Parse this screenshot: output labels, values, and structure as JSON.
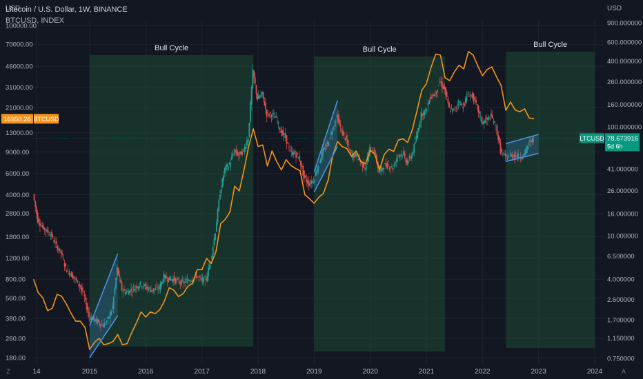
{
  "header": {
    "title": "Litecoin / U.S. Dollar, 1W, BINANCE",
    "overlay": "BTCUSD, INDEX"
  },
  "colors": {
    "background": "#131722",
    "grid": "#1f2430",
    "axis_text": "#b2b5be",
    "candle_up": "#26a69a",
    "candle_down": "#ef5350",
    "overlay_line": "#f7931a",
    "bull_zone": "#1e4a35",
    "channel": "#4a90e2",
    "ltc_badge": "#089981",
    "btc_badge": "#f7931a"
  },
  "chart_data": {
    "type": "line",
    "title": "Litecoin / U.S. Dollar, 1W, BINANCE",
    "overlay_label": "BTCUSD, INDEX",
    "left_axis": {
      "unit": "USD",
      "scale": "log",
      "ticks": [
        "100000.00",
        "70000.00",
        "46000.00",
        "31000.00",
        "21000.00",
        "13000.00",
        "9000.00",
        "6000.00",
        "4000.00",
        "2800.00",
        "1800.00",
        "1200.00",
        "800.00",
        "560.00",
        "380.00",
        "260.00",
        "180.00"
      ]
    },
    "right_axis": {
      "unit": "USD",
      "scale": "log",
      "ticks": [
        "900.000000",
        "600.000000",
        "400.000000",
        "260.000000",
        "160.000000",
        "100.000000",
        "41.000000",
        "26.000000",
        "16.000000",
        "10.000000",
        "6.500000",
        "4.000000",
        "2.600000",
        "1.700000",
        "1.150000",
        "0.750000"
      ]
    },
    "x_ticks": [
      "14",
      "2015",
      "2016",
      "2017",
      "2018",
      "2019",
      "2020",
      "2021",
      "2022",
      "2023",
      "2024"
    ],
    "grid": true,
    "series": [
      {
        "name": "BTCUSD",
        "axis": "left",
        "points": [
          [
            "2014-01",
            800
          ],
          [
            "2014-02",
            620
          ],
          [
            "2014-03",
            560
          ],
          [
            "2014-04",
            440
          ],
          [
            "2014-05",
            460
          ],
          [
            "2014-06",
            600
          ],
          [
            "2014-07",
            580
          ],
          [
            "2014-08",
            500
          ],
          [
            "2014-09",
            420
          ],
          [
            "2014-10",
            360
          ],
          [
            "2014-11",
            360
          ],
          [
            "2014-12",
            320
          ],
          [
            "2015-01",
            210
          ],
          [
            "2015-02",
            240
          ],
          [
            "2015-03",
            260
          ],
          [
            "2015-04",
            230
          ],
          [
            "2015-05",
            235
          ],
          [
            "2015-06",
            245
          ],
          [
            "2015-07",
            280
          ],
          [
            "2015-08",
            230
          ],
          [
            "2015-09",
            235
          ],
          [
            "2015-10",
            290
          ],
          [
            "2015-11",
            350
          ],
          [
            "2015-12",
            430
          ],
          [
            "2016-01",
            390
          ],
          [
            "2016-02",
            430
          ],
          [
            "2016-03",
            415
          ],
          [
            "2016-04",
            450
          ],
          [
            "2016-05",
            530
          ],
          [
            "2016-06",
            680
          ],
          [
            "2016-07",
            650
          ],
          [
            "2016-08",
            575
          ],
          [
            "2016-09",
            610
          ],
          [
            "2016-10",
            700
          ],
          [
            "2016-11",
            740
          ],
          [
            "2016-12",
            960
          ],
          [
            "2017-01",
            960
          ],
          [
            "2017-02",
            1190
          ],
          [
            "2017-03",
            1080
          ],
          [
            "2017-04",
            1350
          ],
          [
            "2017-05",
            2300
          ],
          [
            "2017-06",
            2500
          ],
          [
            "2017-07",
            2880
          ],
          [
            "2017-08",
            4700
          ],
          [
            "2017-09",
            4300
          ],
          [
            "2017-10",
            6400
          ],
          [
            "2017-11",
            10000
          ],
          [
            "2017-12",
            14000
          ],
          [
            "2018-01",
            10000
          ],
          [
            "2018-02",
            10300
          ],
          [
            "2018-03",
            6900
          ],
          [
            "2018-04",
            9200
          ],
          [
            "2018-05",
            7500
          ],
          [
            "2018-06",
            6400
          ],
          [
            "2018-07",
            7800
          ],
          [
            "2018-08",
            7000
          ],
          [
            "2018-09",
            6600
          ],
          [
            "2018-10",
            6300
          ],
          [
            "2018-11",
            4000
          ],
          [
            "2018-12",
            3700
          ],
          [
            "2019-01",
            3400
          ],
          [
            "2019-02",
            3800
          ],
          [
            "2019-03",
            4100
          ],
          [
            "2019-04",
            5300
          ],
          [
            "2019-05",
            8500
          ],
          [
            "2019-06",
            11000
          ],
          [
            "2019-07",
            10000
          ],
          [
            "2019-08",
            9600
          ],
          [
            "2019-09",
            8300
          ],
          [
            "2019-10",
            9200
          ],
          [
            "2019-11",
            7500
          ],
          [
            "2019-12",
            7200
          ],
          [
            "2020-01",
            9300
          ],
          [
            "2020-02",
            8600
          ],
          [
            "2020-03",
            6400
          ],
          [
            "2020-04",
            8600
          ],
          [
            "2020-05",
            9500
          ],
          [
            "2020-06",
            9100
          ],
          [
            "2020-07",
            11300
          ],
          [
            "2020-08",
            11600
          ],
          [
            "2020-09",
            10800
          ],
          [
            "2020-10",
            13800
          ],
          [
            "2020-11",
            19700
          ],
          [
            "2020-12",
            29000
          ],
          [
            "2021-01",
            33000
          ],
          [
            "2021-02",
            45000
          ],
          [
            "2021-03",
            58000
          ],
          [
            "2021-04",
            57000
          ],
          [
            "2021-05",
            37000
          ],
          [
            "2021-06",
            35000
          ],
          [
            "2021-07",
            41500
          ],
          [
            "2021-08",
            47000
          ],
          [
            "2021-09",
            43800
          ],
          [
            "2021-10",
            61000
          ],
          [
            "2021-11",
            57000
          ],
          [
            "2021-12",
            46300
          ],
          [
            "2022-01",
            38500
          ],
          [
            "2022-02",
            43200
          ],
          [
            "2022-03",
            45500
          ],
          [
            "2022-04",
            37700
          ],
          [
            "2022-05",
            31800
          ],
          [
            "2022-06",
            19900
          ],
          [
            "2022-07",
            23300
          ],
          [
            "2022-08",
            20000
          ],
          [
            "2022-09",
            19400
          ],
          [
            "2022-10",
            20500
          ],
          [
            "2022-11",
            17200
          ],
          [
            "2022-12",
            16950
          ]
        ]
      },
      {
        "name": "LTCUSD",
        "axis": "right",
        "candles": "weekly",
        "points": [
          [
            "2014-01",
            24
          ],
          [
            "2014-02",
            14
          ],
          [
            "2014-03",
            12
          ],
          [
            "2014-04",
            11
          ],
          [
            "2014-05",
            10
          ],
          [
            "2014-06",
            8
          ],
          [
            "2014-07",
            7
          ],
          [
            "2014-08",
            5
          ],
          [
            "2014-09",
            4.5
          ],
          [
            "2014-10",
            4
          ],
          [
            "2014-11",
            3.5
          ],
          [
            "2014-12",
            2.7
          ],
          [
            "2015-01",
            1.8
          ],
          [
            "2015-02",
            1.7
          ],
          [
            "2015-03",
            1.6
          ],
          [
            "2015-04",
            1.5
          ],
          [
            "2015-05",
            1.7
          ],
          [
            "2015-06",
            2.2
          ],
          [
            "2015-07",
            5
          ],
          [
            "2015-08",
            3.2
          ],
          [
            "2015-09",
            3
          ],
          [
            "2015-10",
            3.2
          ],
          [
            "2015-11",
            3.4
          ],
          [
            "2015-12",
            3.6
          ],
          [
            "2016-01",
            3.4
          ],
          [
            "2016-02",
            3.2
          ],
          [
            "2016-03",
            3.2
          ],
          [
            "2016-04",
            3.3
          ],
          [
            "2016-05",
            4.2
          ],
          [
            "2016-06",
            4
          ],
          [
            "2016-07",
            4
          ],
          [
            "2016-08",
            3.8
          ],
          [
            "2016-09",
            3.7
          ],
          [
            "2016-10",
            3.9
          ],
          [
            "2016-11",
            4
          ],
          [
            "2016-12",
            4.3
          ],
          [
            "2017-01",
            3.9
          ],
          [
            "2017-02",
            4
          ],
          [
            "2017-03",
            6
          ],
          [
            "2017-04",
            11
          ],
          [
            "2017-05",
            25
          ],
          [
            "2017-06",
            41
          ],
          [
            "2017-07",
            45
          ],
          [
            "2017-08",
            60
          ],
          [
            "2017-09",
            55
          ],
          [
            "2017-10",
            60
          ],
          [
            "2017-11",
            80
          ],
          [
            "2017-12",
            320
          ],
          [
            "2018-01",
            180
          ],
          [
            "2018-02",
            200
          ],
          [
            "2018-03",
            130
          ],
          [
            "2018-04",
            130
          ],
          [
            "2018-05",
            120
          ],
          [
            "2018-06",
            90
          ],
          [
            "2018-07",
            80
          ],
          [
            "2018-08",
            58
          ],
          [
            "2018-09",
            57
          ],
          [
            "2018-10",
            50
          ],
          [
            "2018-11",
            34
          ],
          [
            "2018-12",
            30
          ],
          [
            "2019-01",
            32
          ],
          [
            "2019-02",
            45
          ],
          [
            "2019-03",
            60
          ],
          [
            "2019-04",
            70
          ],
          [
            "2019-05",
            95
          ],
          [
            "2019-06",
            125
          ],
          [
            "2019-07",
            90
          ],
          [
            "2019-08",
            75
          ],
          [
            "2019-09",
            55
          ],
          [
            "2019-10",
            55
          ],
          [
            "2019-11",
            48
          ],
          [
            "2019-12",
            42
          ],
          [
            "2020-01",
            62
          ],
          [
            "2020-02",
            60
          ],
          [
            "2020-03",
            38
          ],
          [
            "2020-04",
            44
          ],
          [
            "2020-05",
            44
          ],
          [
            "2020-06",
            42
          ],
          [
            "2020-07",
            55
          ],
          [
            "2020-08",
            57
          ],
          [
            "2020-09",
            47
          ],
          [
            "2020-10",
            55
          ],
          [
            "2020-11",
            80
          ],
          [
            "2020-12",
            130
          ],
          [
            "2021-01",
            140
          ],
          [
            "2021-02",
            190
          ],
          [
            "2021-03",
            200
          ],
          [
            "2021-04",
            260
          ],
          [
            "2021-05",
            220
          ],
          [
            "2021-06",
            145
          ],
          [
            "2021-07",
            140
          ],
          [
            "2021-08",
            170
          ],
          [
            "2021-09",
            155
          ],
          [
            "2021-10",
            200
          ],
          [
            "2021-11",
            190
          ],
          [
            "2021-12",
            150
          ],
          [
            "2022-01",
            110
          ],
          [
            "2022-02",
            115
          ],
          [
            "2022-03",
            125
          ],
          [
            "2022-04",
            100
          ],
          [
            "2022-05",
            60
          ],
          [
            "2022-06",
            52
          ],
          [
            "2022-07",
            55
          ],
          [
            "2022-08",
            55
          ],
          [
            "2022-09",
            53
          ],
          [
            "2022-10",
            55
          ],
          [
            "2022-11",
            70
          ],
          [
            "2022-12",
            78.673916
          ]
        ]
      }
    ],
    "bull_cycles": [
      {
        "label": "Bull Cycle",
        "start": "2015-01",
        "end": "2017-12"
      },
      {
        "label": "Bull Cycle",
        "start": "2019-01",
        "end": "2021-05"
      },
      {
        "label": "Bull Cycle",
        "start": "2022-06",
        "end": "2024-01"
      }
    ],
    "channels": [
      {
        "start": "2015-01",
        "end": "2015-07",
        "axis": "left",
        "lower": [
          180,
          400
        ],
        "upper": [
          330,
          1300
        ]
      },
      {
        "start": "2019-01",
        "end": "2019-06",
        "axis": "left",
        "lower": [
          4200,
          10000
        ],
        "upper": [
          6200,
          24000
        ]
      },
      {
        "start": "2022-06",
        "end": "2023-01",
        "axis": "right",
        "lower": [
          48,
          57
        ],
        "upper": [
          70,
          85
        ]
      }
    ],
    "price_labels": [
      {
        "series": "BTCUSD",
        "value": "16950.26",
        "tag": "BTCUSD"
      },
      {
        "series": "LTCUSD",
        "value": "78.673916",
        "tag": "LTCUSD",
        "countdown": "5d 6h"
      }
    ]
  },
  "footer": {
    "left_corner": "Z",
    "right_corner": "A"
  }
}
